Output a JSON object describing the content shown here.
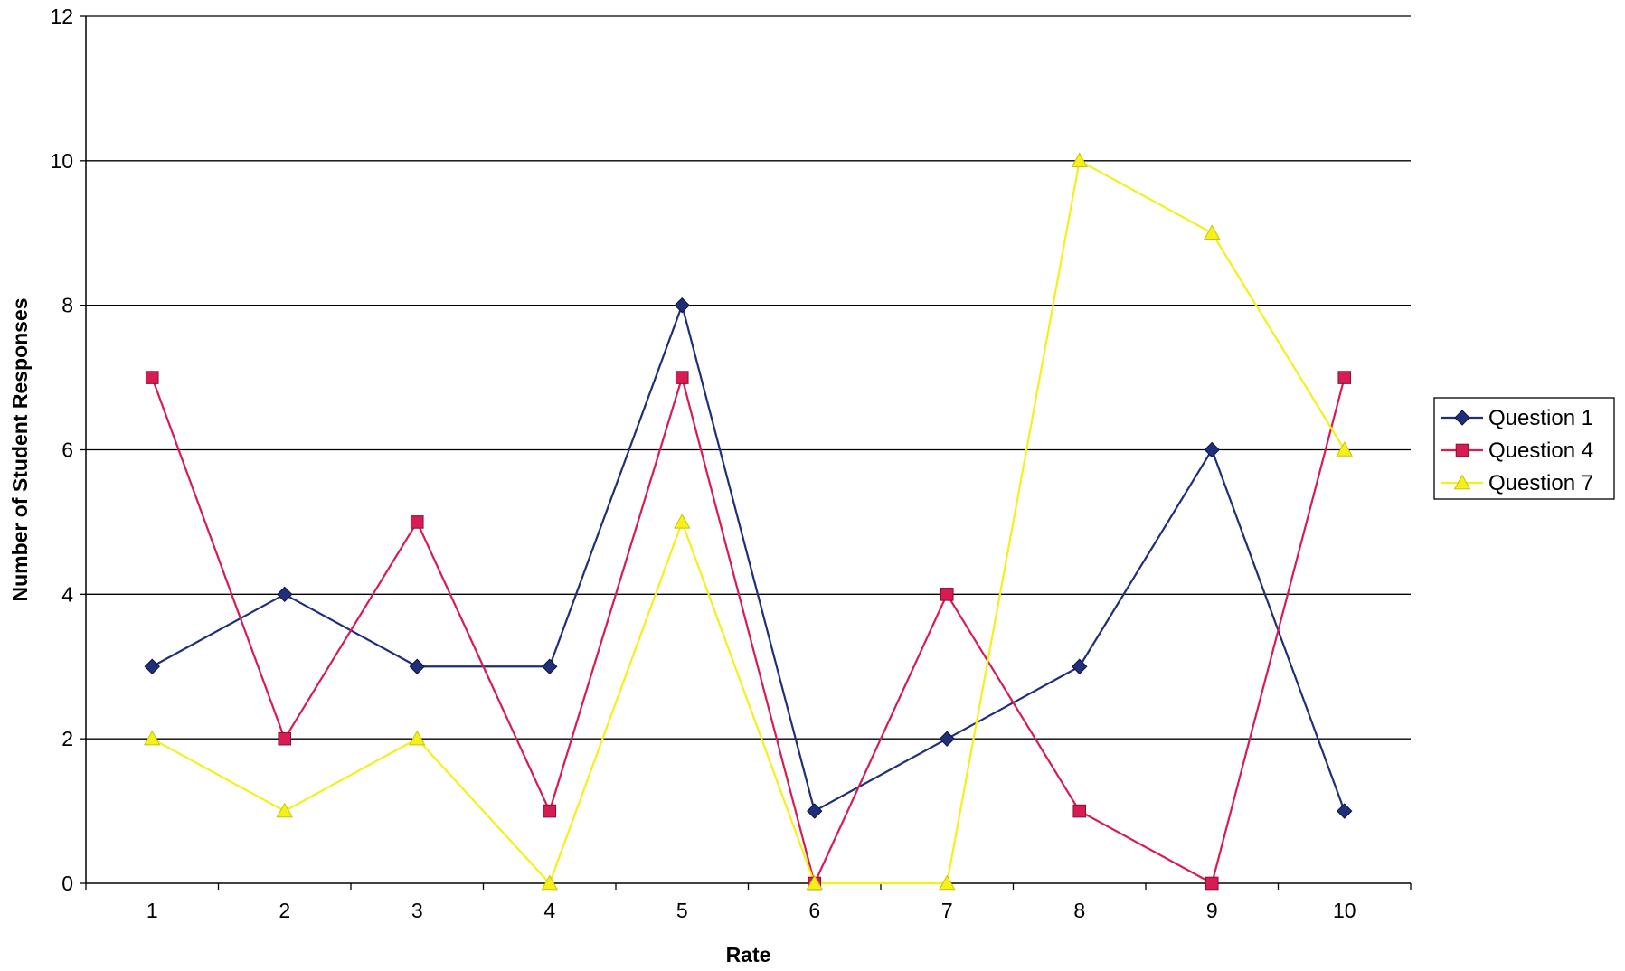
{
  "chart_data": {
    "type": "line",
    "title": "",
    "xlabel": "Rate",
    "ylabel": "Number of Student Responses",
    "categories": [
      "1",
      "2",
      "3",
      "4",
      "5",
      "6",
      "7",
      "8",
      "9",
      "10"
    ],
    "ylim": [
      0,
      12
    ],
    "yticks": [
      "0",
      "2",
      "4",
      "6",
      "8",
      "10",
      "12"
    ],
    "grid": true,
    "legend_position": "right",
    "series": [
      {
        "name": "Question 1",
        "values": [
          3,
          4,
          3,
          3,
          8,
          1,
          2,
          3,
          6,
          1
        ],
        "color": "#1f2f7a",
        "marker": "diamond"
      },
      {
        "name": "Question 4",
        "values": [
          7,
          2,
          5,
          1,
          7,
          0,
          4,
          1,
          0,
          7
        ],
        "color": "#d81b52",
        "marker": "square"
      },
      {
        "name": "Question 7",
        "values": [
          2,
          1,
          2,
          0,
          5,
          0,
          0,
          10,
          9,
          6
        ],
        "color": "#f5f01a",
        "marker": "triangle"
      }
    ]
  }
}
